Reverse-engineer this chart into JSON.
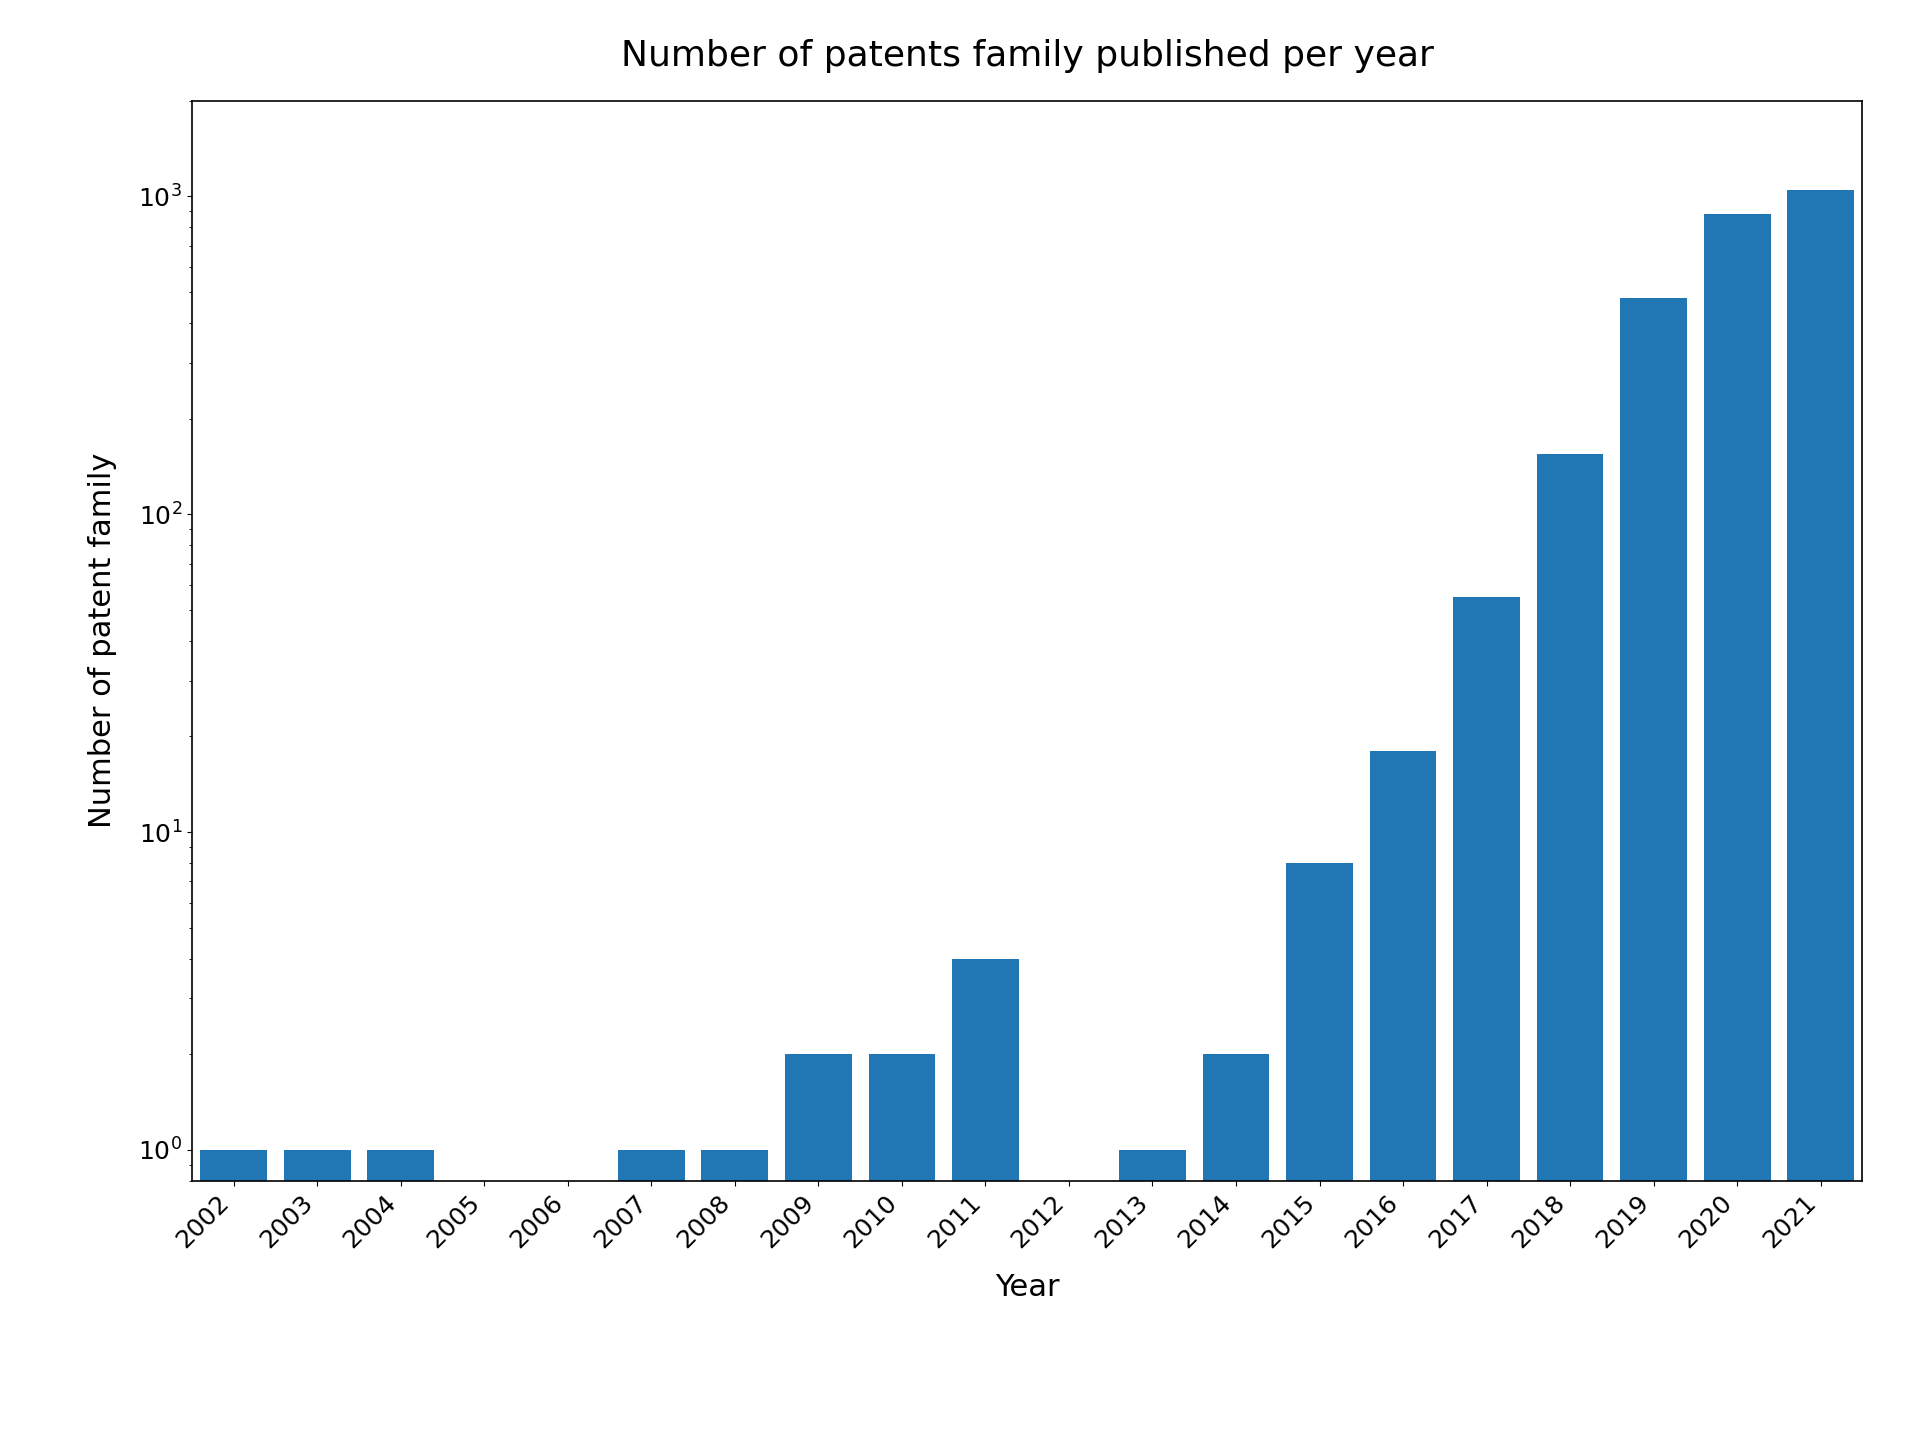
{
  "years": [
    2002,
    2003,
    2004,
    2005,
    2006,
    2007,
    2008,
    2009,
    2010,
    2011,
    2012,
    2013,
    2014,
    2015,
    2016,
    2017,
    2018,
    2019,
    2020,
    2021
  ],
  "values": [
    1,
    1,
    1,
    0,
    0,
    1,
    1,
    2,
    2,
    4,
    0,
    1,
    2,
    8,
    18,
    55,
    155,
    480,
    880,
    1050
  ],
  "bar_color": "#2077b4",
  "title": "Number of patents family published per year",
  "xlabel": "Year",
  "ylabel": "Number of patent family",
  "title_fontsize": 26,
  "label_fontsize": 22,
  "tick_fontsize": 18,
  "background_color": "#ffffff"
}
